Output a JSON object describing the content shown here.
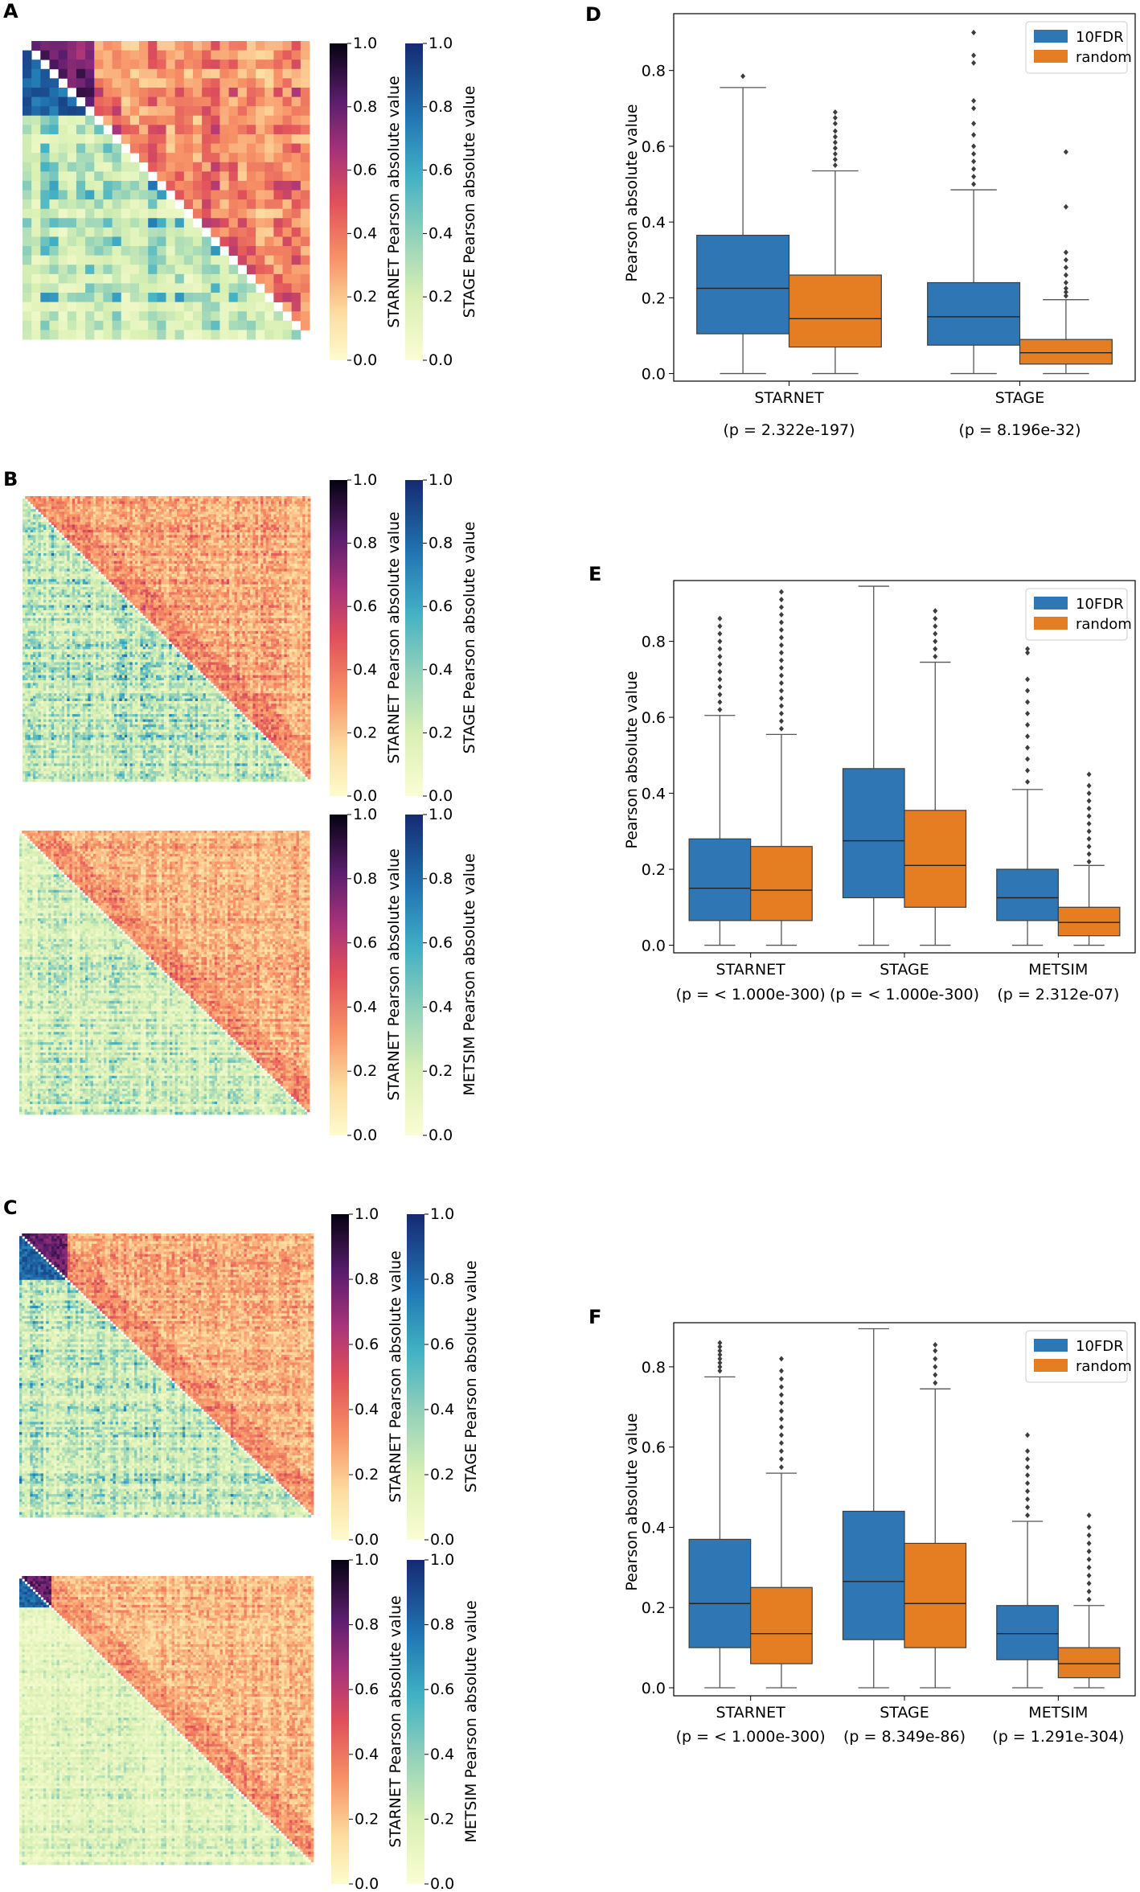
{
  "panels": {
    "A": "A",
    "B": "B",
    "C": "C",
    "D": "D",
    "E": "E",
    "F": "F"
  },
  "colors": {
    "fdr": "#2f77b4",
    "random": "#e57e22",
    "median": "#222222",
    "whisker": "#555555"
  },
  "heatmaps": [
    {
      "id": "A",
      "upper_label": "STARNET Pearson absolute value",
      "lower_label": "STAGE Pearson absolute value",
      "ticks": [
        "0.0",
        "0.2",
        "0.4",
        "0.6",
        "0.8",
        "1.0"
      ],
      "n": 32,
      "seed": 11,
      "upper_level": 0.35,
      "lower_level": 0.3,
      "block": 8
    },
    {
      "id": "B1",
      "upper_label": "STARNET Pearson absolute value",
      "lower_label": "STAGE Pearson absolute value",
      "ticks": [
        "0.0",
        "0.2",
        "0.4",
        "0.6",
        "0.8",
        "1.0"
      ],
      "n": 110,
      "seed": 23,
      "upper_level": 0.28,
      "lower_level": 0.3,
      "block": 0
    },
    {
      "id": "B2",
      "upper_label": "STARNET Pearson absolute value",
      "lower_label": "METSIM Pearson absolute value",
      "ticks": [
        "0.0",
        "0.2",
        "0.4",
        "0.6",
        "0.8",
        "1.0"
      ],
      "n": 110,
      "seed": 37,
      "upper_level": 0.26,
      "lower_level": 0.22,
      "block": 0
    },
    {
      "id": "C1",
      "upper_label": "STARNET Pearson absolute value",
      "lower_label": "STAGE Pearson absolute value",
      "ticks": [
        "0.0",
        "0.2",
        "0.4",
        "0.6",
        "0.8",
        "1.0"
      ],
      "n": 110,
      "seed": 41,
      "upper_level": 0.26,
      "lower_level": 0.28,
      "block": 18
    },
    {
      "id": "C2",
      "upper_label": "STARNET Pearson absolute value",
      "lower_label": "METSIM Pearson absolute value",
      "ticks": [
        "0.0",
        "0.2",
        "0.4",
        "0.6",
        "0.8",
        "1.0"
      ],
      "n": 110,
      "seed": 53,
      "upper_level": 0.24,
      "lower_level": 0.16,
      "block": 12
    }
  ],
  "chart_data": [
    {
      "id": "D",
      "type": "box",
      "ylabel": "Pearson absolute value",
      "ylim": [
        -0.02,
        0.95
      ],
      "yticks": [
        0.0,
        0.2,
        0.4,
        0.6,
        0.8
      ],
      "ytick_labels": [
        "0.0",
        "0.2",
        "0.4",
        "0.6",
        "0.8"
      ],
      "categories": [
        "STARNET",
        "STAGE"
      ],
      "pvalues": [
        "(p = 2.322e-197)",
        "(p = 8.196e-32)"
      ],
      "legend": [
        "10FDR",
        "random"
      ],
      "series": [
        {
          "name": "10FDR",
          "boxes": [
            {
              "min": 0.0,
              "q1": 0.105,
              "median": 0.225,
              "q3": 0.365,
              "max": 0.755,
              "outliers": [
                0.785
              ]
            },
            {
              "min": 0.0,
              "q1": 0.075,
              "median": 0.15,
              "q3": 0.24,
              "max": 0.485,
              "outliers": [
                0.5,
                0.52,
                0.54,
                0.56,
                0.58,
                0.6,
                0.63,
                0.66,
                0.7,
                0.72,
                0.82,
                0.84,
                0.9
              ]
            }
          ]
        },
        {
          "name": "random",
          "boxes": [
            {
              "min": 0.0,
              "q1": 0.07,
              "median": 0.145,
              "q3": 0.26,
              "max": 0.535,
              "outliers": [
                0.55,
                0.565,
                0.58,
                0.595,
                0.61,
                0.625,
                0.64,
                0.66,
                0.675,
                0.69
              ]
            },
            {
              "min": 0.0,
              "q1": 0.025,
              "median": 0.055,
              "q3": 0.09,
              "max": 0.195,
              "outliers": [
                0.205,
                0.215,
                0.225,
                0.24,
                0.26,
                0.28,
                0.3,
                0.32,
                0.44,
                0.585
              ]
            }
          ]
        }
      ]
    },
    {
      "id": "E",
      "type": "box",
      "ylabel": "Pearson absolute value",
      "ylim": [
        -0.02,
        0.96
      ],
      "yticks": [
        0.0,
        0.2,
        0.4,
        0.6,
        0.8
      ],
      "ytick_labels": [
        "0.0",
        "0.2",
        "0.4",
        "0.6",
        "0.8"
      ],
      "categories": [
        "STARNET",
        "STAGE",
        "METSIM"
      ],
      "pvalues": [
        "(p = < 1.000e-300)",
        "(p = < 1.000e-300)",
        "(p = 2.312e-07)"
      ],
      "legend": [
        "10FDR",
        "random"
      ],
      "series": [
        {
          "name": "10FDR",
          "boxes": [
            {
              "min": 0.0,
              "q1": 0.065,
              "median": 0.15,
              "q3": 0.28,
              "max": 0.605,
              "outliers": [
                0.62,
                0.64,
                0.66,
                0.68,
                0.7,
                0.72,
                0.74,
                0.76,
                0.78,
                0.8,
                0.82,
                0.84,
                0.86
              ]
            },
            {
              "min": 0.0,
              "q1": 0.125,
              "median": 0.275,
              "q3": 0.465,
              "max": 0.945,
              "outliers": []
            },
            {
              "min": 0.0,
              "q1": 0.065,
              "median": 0.125,
              "q3": 0.2,
              "max": 0.41,
              "outliers": [
                0.43,
                0.46,
                0.49,
                0.52,
                0.55,
                0.58,
                0.61,
                0.64,
                0.67,
                0.7,
                0.77,
                0.78
              ]
            }
          ]
        },
        {
          "name": "random",
          "boxes": [
            {
              "min": 0.0,
              "q1": 0.065,
              "median": 0.145,
              "q3": 0.26,
              "max": 0.555,
              "outliers": [
                0.57,
                0.59,
                0.61,
                0.63,
                0.65,
                0.67,
                0.69,
                0.71,
                0.73,
                0.75,
                0.77,
                0.79,
                0.81,
                0.83,
                0.85,
                0.87,
                0.89,
                0.91,
                0.93
              ]
            },
            {
              "min": 0.0,
              "q1": 0.1,
              "median": 0.21,
              "q3": 0.355,
              "max": 0.745,
              "outliers": [
                0.76,
                0.78,
                0.8,
                0.82,
                0.84,
                0.86,
                0.88
              ]
            },
            {
              "min": 0.0,
              "q1": 0.025,
              "median": 0.06,
              "q3": 0.1,
              "max": 0.21,
              "outliers": [
                0.22,
                0.24,
                0.26,
                0.28,
                0.3,
                0.32,
                0.34,
                0.36,
                0.38,
                0.4,
                0.42,
                0.45
              ]
            }
          ]
        }
      ]
    },
    {
      "id": "F",
      "type": "box",
      "ylabel": "Pearson absolute value",
      "ylim": [
        -0.02,
        0.91
      ],
      "yticks": [
        0.0,
        0.2,
        0.4,
        0.6,
        0.8
      ],
      "ytick_labels": [
        "0.0",
        "0.2",
        "0.4",
        "0.6",
        "0.8"
      ],
      "categories": [
        "STARNET",
        "STAGE",
        "METSIM"
      ],
      "pvalues": [
        "(p = < 1.000e-300)",
        "(p = 8.349e-86)",
        "(p = 1.291e-304)"
      ],
      "legend": [
        "10FDR",
        "random"
      ],
      "series": [
        {
          "name": "10FDR",
          "boxes": [
            {
              "min": 0.0,
              "q1": 0.1,
              "median": 0.21,
              "q3": 0.37,
              "max": 0.775,
              "outliers": [
                0.79,
                0.8,
                0.81,
                0.82,
                0.83,
                0.84,
                0.85,
                0.86
              ]
            },
            {
              "min": 0.0,
              "q1": 0.12,
              "median": 0.265,
              "q3": 0.44,
              "max": 0.895,
              "outliers": []
            },
            {
              "min": 0.0,
              "q1": 0.07,
              "median": 0.135,
              "q3": 0.205,
              "max": 0.415,
              "outliers": [
                0.43,
                0.45,
                0.47,
                0.49,
                0.51,
                0.53,
                0.55,
                0.57,
                0.59,
                0.63
              ]
            }
          ]
        },
        {
          "name": "random",
          "boxes": [
            {
              "min": 0.0,
              "q1": 0.06,
              "median": 0.135,
              "q3": 0.25,
              "max": 0.535,
              "outliers": [
                0.55,
                0.57,
                0.59,
                0.61,
                0.63,
                0.65,
                0.67,
                0.69,
                0.71,
                0.73,
                0.75,
                0.77,
                0.79,
                0.82
              ]
            },
            {
              "min": 0.0,
              "q1": 0.1,
              "median": 0.21,
              "q3": 0.36,
              "max": 0.745,
              "outliers": [
                0.76,
                0.78,
                0.8,
                0.82,
                0.84,
                0.855
              ]
            },
            {
              "min": 0.0,
              "q1": 0.025,
              "median": 0.06,
              "q3": 0.1,
              "max": 0.205,
              "outliers": [
                0.22,
                0.24,
                0.26,
                0.28,
                0.3,
                0.32,
                0.34,
                0.36,
                0.38,
                0.4,
                0.43
              ]
            }
          ]
        }
      ]
    }
  ]
}
